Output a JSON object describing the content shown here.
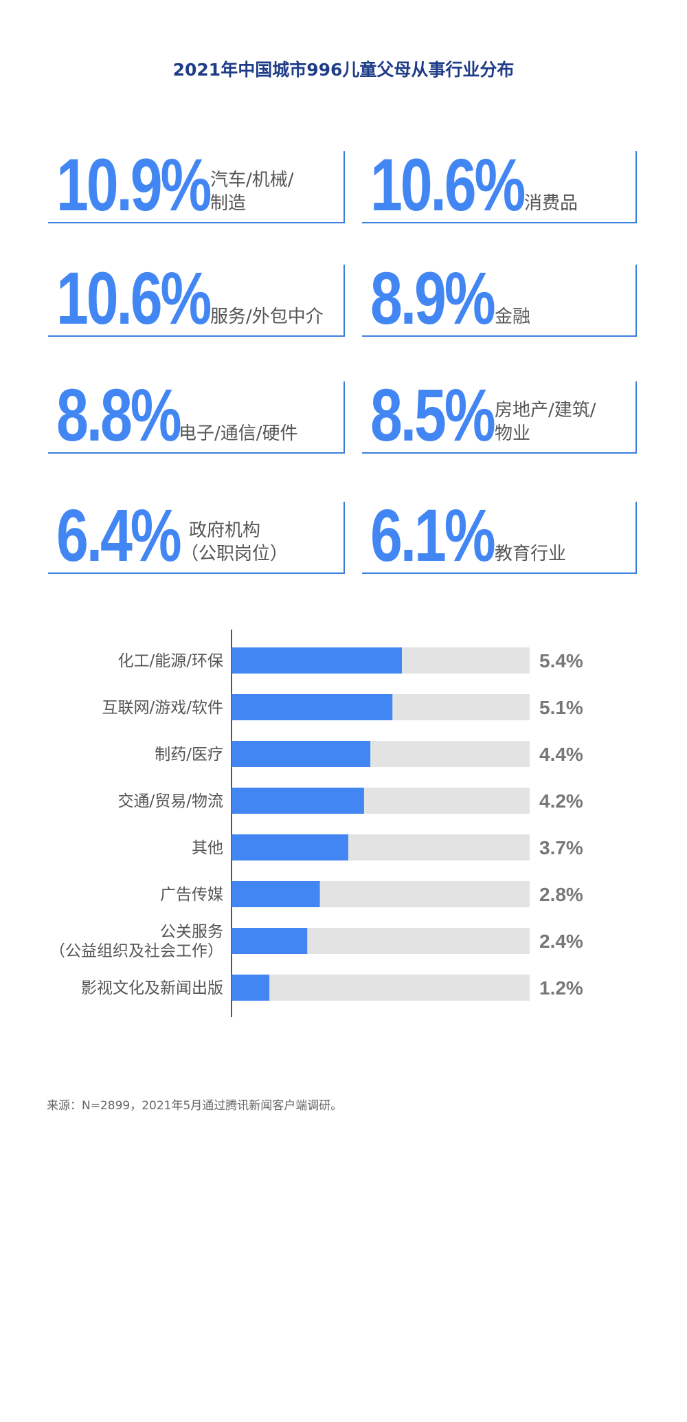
{
  "title": "2021年中国城市996儿童父母从事行业分布",
  "stats": [
    {
      "value": "10.9%",
      "label_line1": "汽车/机械/",
      "label_line2": "制造"
    },
    {
      "value": "10.6%",
      "label_line1": "消费品",
      "label_line2": ""
    },
    {
      "value": "10.6%",
      "label_line1": "服务/外包中介",
      "label_line2": ""
    },
    {
      "value": "8.9%",
      "label_line1": "金融",
      "label_line2": ""
    },
    {
      "value": "8.8%",
      "label_line1": "电子/通信/硬件",
      "label_line2": ""
    },
    {
      "value": "8.5%",
      "label_line1": "房地产/建筑/",
      "label_line2": "物业"
    },
    {
      "value": "6.4%",
      "label_line1": "政府机构",
      "label_line2": "（公职岗位）"
    },
    {
      "value": "6.1%",
      "label_line1": "教育行业",
      "label_line2": ""
    }
  ],
  "chart_data": {
    "type": "bar",
    "orientation": "horizontal",
    "categories": [
      [
        "化工/能源/环保"
      ],
      [
        "互联网/游戏/软件"
      ],
      [
        "制药/医疗"
      ],
      [
        "交通/贸易/物流"
      ],
      [
        "其他"
      ],
      [
        "广告传媒"
      ],
      [
        "公关服务",
        "（公益组织及社会工作）"
      ],
      [
        "影视文化及新闻出版"
      ]
    ],
    "values": [
      5.4,
      5.1,
      4.4,
      4.2,
      3.7,
      2.8,
      2.4,
      1.2
    ],
    "value_labels": [
      "5.4%",
      "5.1%",
      "4.4%",
      "4.2%",
      "3.7%",
      "2.8%",
      "2.4%",
      "1.2%"
    ],
    "xlim": [
      0,
      10
    ],
    "grid": false,
    "colors": {
      "bar": "#4286f4",
      "track": "#e3e3e3",
      "axis": "#555555"
    }
  },
  "source": "来源：N=2899，2021年5月通过腾讯新闻客户端调研。"
}
